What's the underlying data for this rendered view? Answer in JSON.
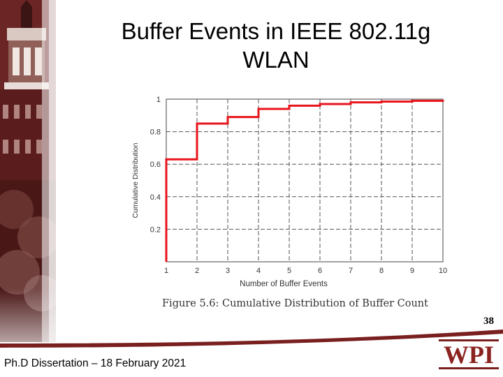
{
  "slide": {
    "title_line1": "Buffer Events in IEEE 802.11g",
    "title_line2": "WLAN",
    "figure_caption": "Figure 5.6: Cumulative Distribution of Buffer Count",
    "slide_number": "38",
    "footer": "Ph.D Dissertation – 18 February 2021",
    "logo_text": "WPI"
  },
  "colors": {
    "line": "#e8141c",
    "accent": "#7a1f1f"
  },
  "chart_data": {
    "type": "line",
    "step": true,
    "xlabel": "Number of Buffer Events",
    "ylabel": "Cumulative Distribution",
    "xlim": [
      1,
      10
    ],
    "ylim": [
      0,
      1
    ],
    "xticks": [
      1,
      2,
      3,
      4,
      5,
      6,
      7,
      8,
      9,
      10
    ],
    "yticks": [
      "0.2",
      "0.4",
      "0.6",
      "0.8",
      "1"
    ],
    "ytick_values": [
      0.2,
      0.4,
      0.6,
      0.8,
      1.0
    ],
    "grid": true,
    "x": [
      1,
      2,
      3,
      4,
      5,
      6,
      7,
      8,
      9,
      10
    ],
    "y": [
      0.63,
      0.85,
      0.89,
      0.94,
      0.96,
      0.97,
      0.98,
      0.985,
      0.99,
      0.995
    ]
  }
}
